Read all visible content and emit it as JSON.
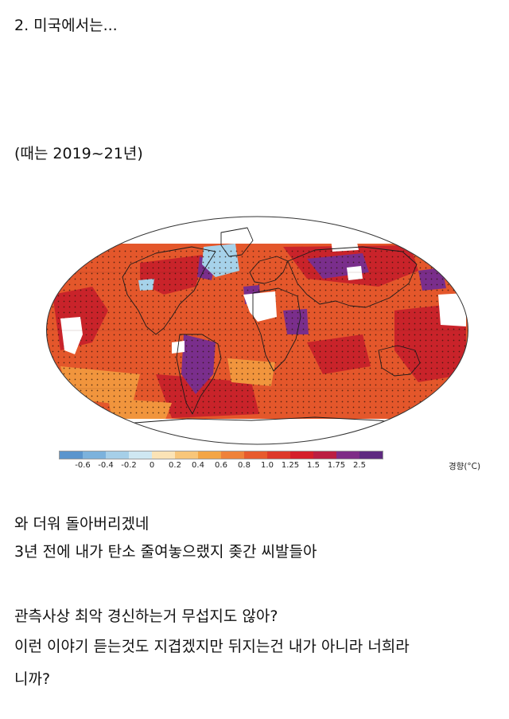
{
  "post": {
    "heading": "2. 미국에서는...",
    "period": "(때는 2019~21년)",
    "lines": [
      "와 더워 돌아버리겠네",
      "3년 전에 내가 탄소 줄여놓으랬지 좆간 씨발들아",
      "관측사상 최악 경신하는거 무섭지도 않아?",
      "이런 이야기 듣는것도 지겹겠지만 뒤지는건 내가 아니라 너희라",
      "니까?"
    ]
  },
  "legend": {
    "unit": "경향(°C)",
    "ticks": [
      "-0.6",
      "-0.4",
      "-0.2",
      "0",
      "0.2",
      "0.4",
      "0.6",
      "0.8",
      "1.0",
      "1.25",
      "1.5",
      "1.75",
      "2.5"
    ],
    "colors": [
      "#5b95cd",
      "#7cb2dc",
      "#a6cfe8",
      "#cfe7f2",
      "#fbe3b6",
      "#f8c67a",
      "#f3a546",
      "#ef823a",
      "#e75b2e",
      "#dd3a2a",
      "#d51f2a",
      "#bb1f42",
      "#7e2d86",
      "#5e2a80"
    ]
  },
  "map_palette": {
    "ocean_base": "#e4572b",
    "hot": "#c9232a",
    "very_hot": "#7a2e8c",
    "mild": "#f1953d",
    "cool": "#a6d2ea",
    "no_data": "#ffffff",
    "coast": "#1b1b1b"
  }
}
